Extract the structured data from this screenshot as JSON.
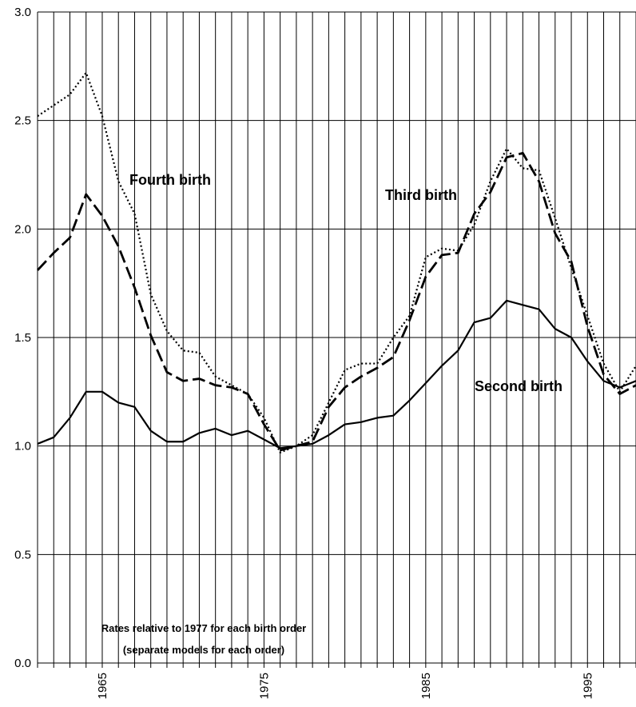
{
  "chart_data": {
    "type": "line",
    "x": [
      1961,
      1962,
      1963,
      1964,
      1965,
      1966,
      1967,
      1968,
      1969,
      1970,
      1971,
      1972,
      1973,
      1974,
      1975,
      1976,
      1977,
      1978,
      1979,
      1980,
      1981,
      1982,
      1983,
      1984,
      1985,
      1986,
      1987,
      1988,
      1989,
      1990,
      1991,
      1992,
      1993,
      1994,
      1995,
      1996,
      1997,
      1998
    ],
    "series": [
      {
        "name": "Second birth",
        "color": "#000000",
        "dash": "solid",
        "values": [
          1.01,
          1.04,
          1.13,
          1.25,
          1.25,
          1.2,
          1.18,
          1.07,
          1.02,
          1.02,
          1.06,
          1.08,
          1.05,
          1.07,
          1.03,
          0.99,
          1.0,
          1.01,
          1.05,
          1.1,
          1.11,
          1.13,
          1.14,
          1.21,
          1.29,
          1.37,
          1.44,
          1.57,
          1.59,
          1.67,
          1.65,
          1.63,
          1.54,
          1.5,
          1.39,
          1.3,
          1.27,
          1.3
        ]
      },
      {
        "name": "Third birth",
        "color": "#000000",
        "dash": "long-dash",
        "values": [
          1.81,
          1.89,
          1.96,
          2.16,
          2.06,
          1.92,
          1.73,
          1.51,
          1.34,
          1.3,
          1.31,
          1.28,
          1.27,
          1.24,
          1.1,
          0.98,
          1.0,
          1.02,
          1.18,
          1.27,
          1.32,
          1.36,
          1.41,
          1.58,
          1.78,
          1.88,
          1.89,
          2.07,
          2.17,
          2.33,
          2.35,
          2.22,
          1.98,
          1.85,
          1.55,
          1.33,
          1.24,
          1.28
        ]
      },
      {
        "name": "Fourth birth",
        "color": "#000000",
        "dash": "dotted",
        "values": [
          2.52,
          2.57,
          2.62,
          2.72,
          2.52,
          2.22,
          2.07,
          1.7,
          1.53,
          1.44,
          1.43,
          1.32,
          1.28,
          1.24,
          1.13,
          0.97,
          1.0,
          1.05,
          1.2,
          1.35,
          1.38,
          1.38,
          1.5,
          1.6,
          1.87,
          1.91,
          1.9,
          2.02,
          2.22,
          2.37,
          2.28,
          2.27,
          2.05,
          1.82,
          1.6,
          1.38,
          1.25,
          1.37
        ]
      }
    ],
    "note": [
      "Rates relative to 1977 for each birth order",
      "(separate models for each order)"
    ],
    "xlim": [
      1961,
      1998
    ],
    "xticks": [
      1965,
      1975,
      1985,
      1995
    ],
    "x_minor_ticks": [
      1961,
      1962,
      1963,
      1964,
      1965,
      1966,
      1967,
      1968,
      1969,
      1970,
      1971,
      1972,
      1973,
      1974,
      1975,
      1976,
      1977,
      1978,
      1979,
      1980,
      1981,
      1982,
      1983,
      1984,
      1985,
      1986,
      1987,
      1988,
      1989,
      1990,
      1991,
      1992,
      1993,
      1994,
      1995,
      1996,
      1997,
      1998
    ],
    "ylim": [
      0,
      3
    ],
    "yticks": [
      {
        "value": 0,
        "label": "0.0"
      },
      {
        "value": 0.5,
        "label": "0.5"
      },
      {
        "value": 1,
        "label": "1.0"
      },
      {
        "value": 1.5,
        "label": "1.5"
      },
      {
        "value": 2,
        "label": "2.0"
      },
      {
        "value": 2.5,
        "label": "2.5"
      },
      {
        "value": 3,
        "label": "3.0"
      }
    ],
    "grid": true
  }
}
